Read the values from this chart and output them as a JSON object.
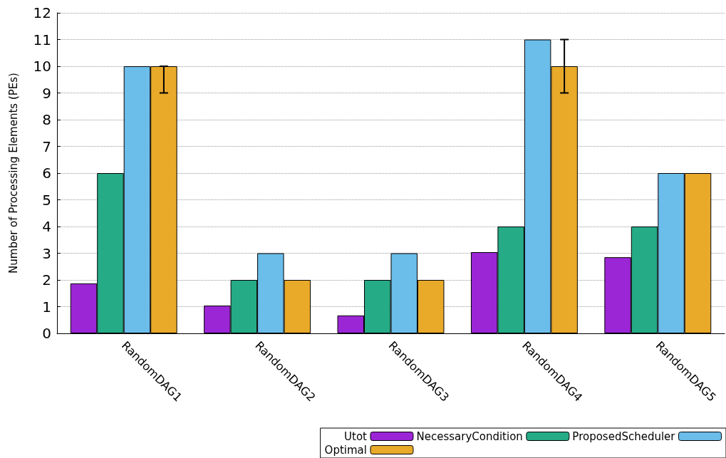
{
  "chart_data": {
    "type": "bar",
    "ylabel": "Number of Processing Elements (PEs)",
    "categories": [
      "RandomDAG1",
      "RandomDAG2",
      "RandomDAG3",
      "RandomDAG4",
      "RandomDAG5"
    ],
    "series": [
      {
        "name": "Utot",
        "color": "#9b26d6",
        "values": [
          1.87,
          1.04,
          0.67,
          3.04,
          2.85
        ]
      },
      {
        "name": "NecessaryCondition",
        "color": "#26ab87",
        "values": [
          6,
          2,
          2,
          4,
          4
        ]
      },
      {
        "name": "ProposedScheduler",
        "color": "#6bbdea",
        "values": [
          10,
          3,
          3,
          11,
          6
        ]
      },
      {
        "name": "Optimal",
        "color": "#e9aa2a",
        "values": [
          10,
          2,
          2,
          10,
          6
        ],
        "errors": [
          [
            9,
            10
          ],
          null,
          null,
          [
            9,
            11
          ],
          null
        ]
      }
    ],
    "ylim": [
      0,
      12
    ],
    "yticks": [
      0,
      1,
      2,
      3,
      4,
      5,
      6,
      7,
      8,
      9,
      10,
      11,
      12
    ],
    "grid": "y",
    "legend": "bottom right"
  }
}
